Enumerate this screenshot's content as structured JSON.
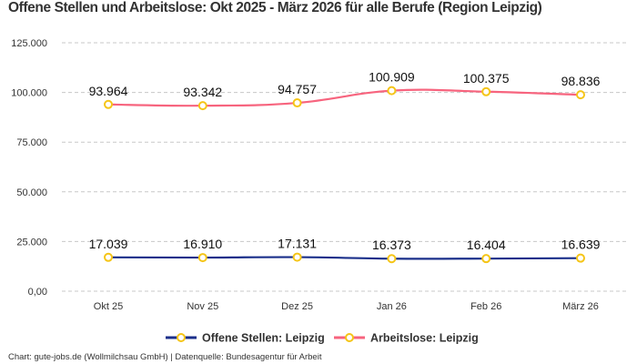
{
  "chart_data": {
    "type": "line",
    "title": "Offene Stellen und Arbeitslose: Okt 2025 - März 2026 für alle Berufe (Region Leipzig)",
    "categories": [
      "Okt 25",
      "Nov 25",
      "Dez 25",
      "Jan 26",
      "Feb 26",
      "März 26"
    ],
    "ylim": [
      0,
      125000
    ],
    "yticks": [
      0,
      25000,
      50000,
      75000,
      100000,
      125000
    ],
    "ytick_labels": [
      "0,00",
      "25.000",
      "50.000",
      "75.000",
      "100.000",
      "125.000"
    ],
    "grid": true,
    "legend_placement": "bottom",
    "series": [
      {
        "name": "Offene Stellen: Leipzig",
        "values": [
          17039,
          16910,
          17131,
          16373,
          16404,
          16639
        ],
        "labels": [
          "17.039",
          "16.910",
          "17.131",
          "16.373",
          "16.404",
          "16.639"
        ],
        "color": "#1a2f8a",
        "marker_color": "#f5c518"
      },
      {
        "name": "Arbeitslose: Leipzig",
        "values": [
          93964,
          93342,
          94757,
          100909,
          100375,
          98836
        ],
        "labels": [
          "93.964",
          "93.342",
          "94.757",
          "100.909",
          "100.375",
          "98.836"
        ],
        "color": "#f7647e",
        "marker_color": "#f5c518"
      }
    ],
    "source": "Chart: gute-jobs.de (Wollmilchsau GmbH) | Datenquelle: Bundesagentur für Arbeit"
  }
}
